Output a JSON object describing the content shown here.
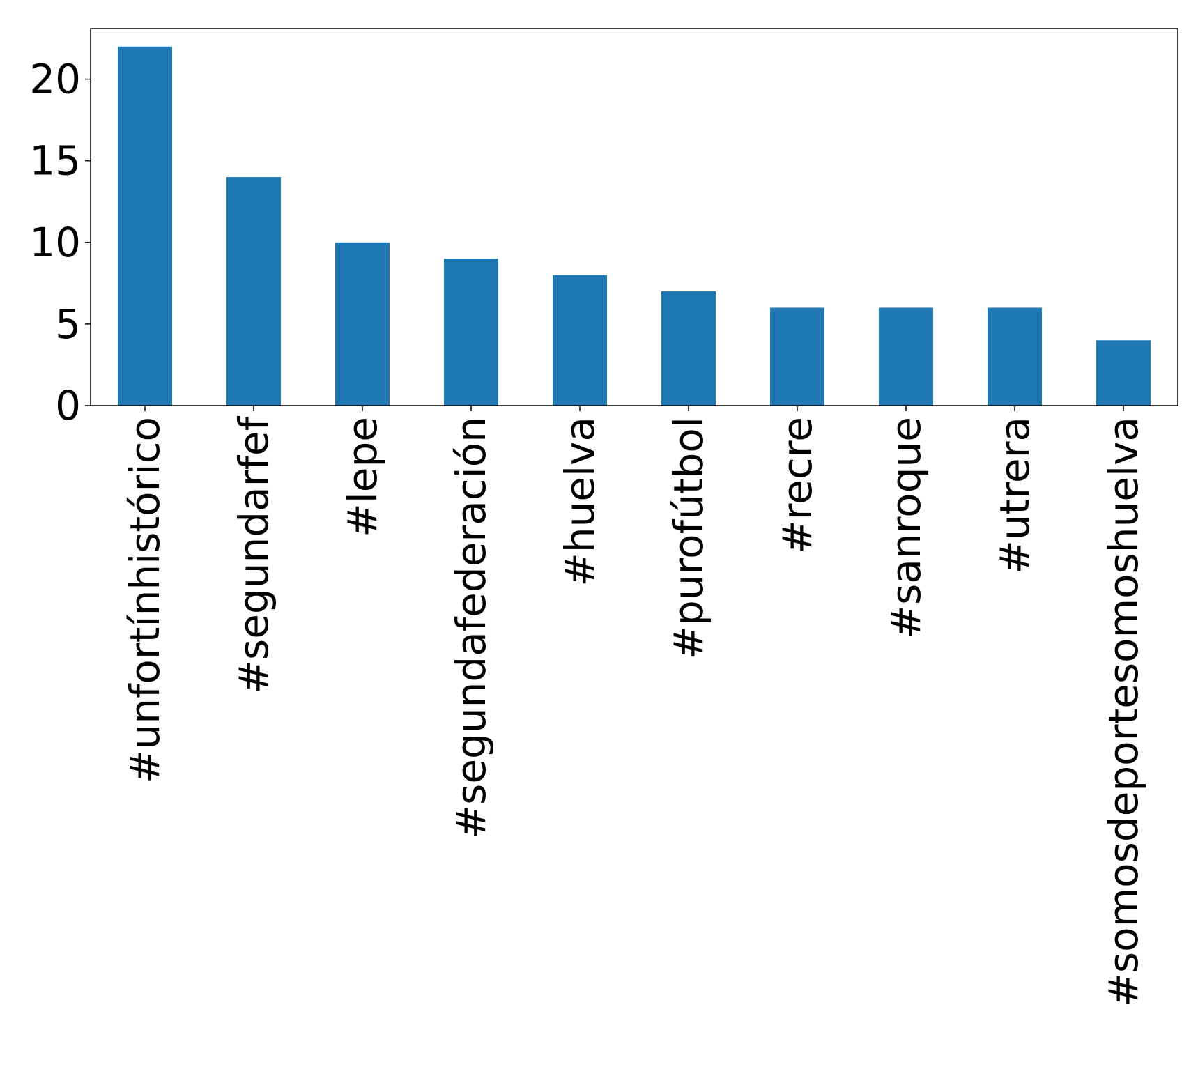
{
  "chart_data": {
    "type": "bar",
    "title": "",
    "xlabel": "",
    "ylabel": "",
    "categories": [
      "#unfortínhistórico",
      "#segundarfef",
      "#lepe",
      "#segundafederación",
      "#huelva",
      "#purofútbol",
      "#recre",
      "#sanroque",
      "#utrera",
      "#somosdeportesomoshuelva"
    ],
    "values": [
      22,
      14,
      10,
      9,
      8,
      7,
      6,
      6,
      6,
      4
    ],
    "ylim": [
      0,
      23.1
    ],
    "yticks": [
      0,
      5,
      10,
      15,
      20
    ],
    "grid": false,
    "legend": "none",
    "bar_color": "#1f77b4",
    "axis_color": "#000000"
  }
}
